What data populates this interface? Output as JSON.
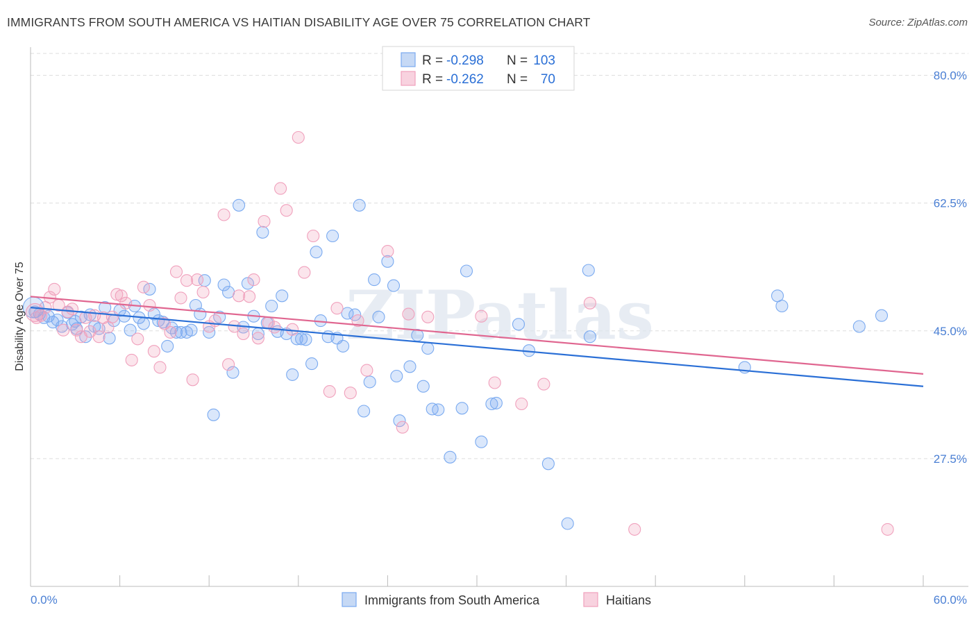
{
  "title": "IMMIGRANTS FROM SOUTH AMERICA VS HAITIAN DISABILITY AGE OVER 75 CORRELATION CHART",
  "source": "Source: ZipAtlas.com",
  "watermark": "ZIPatlas",
  "colors": {
    "blue": "#7aaaf0",
    "blue_line": "#2a6fd6",
    "pink": "#f0a0bc",
    "pink_line": "#e06690",
    "tick_text": "#4a7fd4",
    "grid": "#dddddd"
  },
  "legend": {
    "r_label": "R =",
    "n_label": "N =",
    "rows": [
      {
        "r": "-0.298",
        "n": "103"
      },
      {
        "r": "-0.262",
        "n": "70"
      }
    ]
  },
  "chart_data": {
    "type": "scatter",
    "xlabel": "",
    "ylabel": "Disability Age Over 75",
    "xlim": [
      0,
      60
    ],
    "ylim": [
      10,
      83
    ],
    "x_tick_labels": [
      "0.0%",
      "60.0%"
    ],
    "y_ticks": [
      27.5,
      45.0,
      62.5,
      80.0
    ],
    "y_tick_labels": [
      "27.5%",
      "45.0%",
      "62.5%",
      "80.0%"
    ],
    "grid": "horizontal dashed",
    "legend_position": "top-center",
    "series": [
      {
        "name": "Immigrants from South America",
        "color": "#7aaaf0",
        "trend": [
          [
            0,
            48.2
          ],
          [
            60,
            37.4
          ]
        ],
        "points": [
          [
            0.3,
            47.6
          ],
          [
            0.6,
            47.3
          ],
          [
            0.9,
            46.8
          ],
          [
            1.2,
            47.0
          ],
          [
            1.5,
            46.2
          ],
          [
            1.8,
            46.5
          ],
          [
            2.1,
            45.6
          ],
          [
            2.5,
            47.5
          ],
          [
            2.8,
            45.9
          ],
          [
            3.1,
            45.3
          ],
          [
            3.4,
            46.9
          ],
          [
            3.7,
            44.2
          ],
          [
            4.0,
            47.2
          ],
          [
            4.3,
            45.6
          ],
          [
            4.6,
            45.3
          ],
          [
            5.0,
            48.2
          ],
          [
            5.3,
            44.0
          ],
          [
            5.6,
            46.4
          ],
          [
            6.0,
            47.8
          ],
          [
            6.3,
            47.0
          ],
          [
            6.7,
            45.1
          ],
          [
            7.0,
            48.4
          ],
          [
            7.3,
            46.8
          ],
          [
            7.6,
            46.0
          ],
          [
            8.0,
            50.7
          ],
          [
            8.3,
            47.3
          ],
          [
            8.6,
            46.4
          ],
          [
            8.9,
            46.2
          ],
          [
            9.2,
            42.9
          ],
          [
            9.5,
            45.4
          ],
          [
            9.8,
            44.8
          ],
          [
            10.1,
            44.8
          ],
          [
            10.5,
            44.8
          ],
          [
            10.8,
            45.1
          ],
          [
            11.1,
            48.5
          ],
          [
            11.4,
            47.3
          ],
          [
            11.7,
            51.9
          ],
          [
            12.0,
            44.8
          ],
          [
            12.3,
            33.5
          ],
          [
            12.7,
            46.9
          ],
          [
            13.0,
            51.3
          ],
          [
            13.3,
            50.3
          ],
          [
            13.6,
            39.3
          ],
          [
            14.0,
            62.2
          ],
          [
            14.3,
            45.5
          ],
          [
            14.6,
            51.5
          ],
          [
            15.0,
            47.0
          ],
          [
            15.3,
            44.6
          ],
          [
            15.6,
            58.5
          ],
          [
            15.9,
            46.1
          ],
          [
            16.2,
            48.4
          ],
          [
            16.6,
            44.9
          ],
          [
            16.9,
            49.8
          ],
          [
            17.2,
            44.6
          ],
          [
            17.6,
            39.0
          ],
          [
            17.9,
            43.9
          ],
          [
            18.2,
            43.9
          ],
          [
            18.5,
            43.8
          ],
          [
            18.9,
            40.5
          ],
          [
            19.2,
            55.8
          ],
          [
            19.5,
            46.4
          ],
          [
            20.0,
            44.2
          ],
          [
            20.3,
            58.0
          ],
          [
            20.6,
            44.0
          ],
          [
            21.0,
            42.9
          ],
          [
            21.3,
            47.4
          ],
          [
            21.8,
            47.2
          ],
          [
            22.1,
            62.2
          ],
          [
            22.4,
            34.0
          ],
          [
            22.8,
            38.0
          ],
          [
            23.1,
            52.0
          ],
          [
            23.4,
            46.9
          ],
          [
            24.0,
            54.5
          ],
          [
            24.4,
            51.2
          ],
          [
            24.6,
            38.8
          ],
          [
            24.8,
            32.7
          ],
          [
            25.5,
            40.1
          ],
          [
            26.0,
            44.4
          ],
          [
            26.4,
            37.4
          ],
          [
            26.7,
            42.6
          ],
          [
            27.0,
            34.3
          ],
          [
            27.4,
            34.2
          ],
          [
            28.2,
            27.7
          ],
          [
            29.0,
            34.4
          ],
          [
            29.3,
            53.2
          ],
          [
            30.3,
            29.8
          ],
          [
            31.0,
            35.0
          ],
          [
            31.3,
            35.1
          ],
          [
            32.8,
            45.9
          ],
          [
            33.5,
            42.3
          ],
          [
            34.8,
            26.8
          ],
          [
            36.1,
            18.6
          ],
          [
            37.5,
            53.3
          ],
          [
            37.6,
            44.2
          ],
          [
            48.0,
            40.0
          ],
          [
            50.2,
            49.8
          ],
          [
            50.5,
            48.4
          ],
          [
            55.7,
            45.6
          ],
          [
            57.2,
            47.1
          ],
          [
            3.0,
            46.3
          ]
        ]
      },
      {
        "name": "Haitians",
        "color": "#f0a0bc",
        "trend": [
          [
            0,
            49.7
          ],
          [
            60,
            39.1
          ]
        ],
        "points": [
          [
            0.4,
            46.8
          ],
          [
            0.7,
            47.1
          ],
          [
            1.0,
            48.2
          ],
          [
            1.3,
            49.6
          ],
          [
            1.6,
            50.7
          ],
          [
            1.9,
            48.5
          ],
          [
            2.2,
            45.1
          ],
          [
            2.5,
            47.6
          ],
          [
            2.8,
            48.0
          ],
          [
            3.1,
            45.1
          ],
          [
            3.4,
            44.2
          ],
          [
            3.7,
            46.8
          ],
          [
            4.0,
            44.9
          ],
          [
            4.3,
            47.1
          ],
          [
            4.6,
            44.2
          ],
          [
            4.9,
            46.8
          ],
          [
            5.2,
            45.5
          ],
          [
            5.5,
            46.9
          ],
          [
            5.8,
            50.0
          ],
          [
            6.1,
            49.8
          ],
          [
            6.4,
            48.8
          ],
          [
            6.8,
            41.0
          ],
          [
            7.2,
            43.9
          ],
          [
            7.6,
            51.0
          ],
          [
            8.0,
            48.5
          ],
          [
            8.3,
            42.2
          ],
          [
            8.7,
            40.0
          ],
          [
            9.0,
            46.0
          ],
          [
            9.4,
            44.8
          ],
          [
            9.8,
            53.1
          ],
          [
            10.1,
            49.5
          ],
          [
            10.5,
            51.9
          ],
          [
            10.9,
            38.3
          ],
          [
            11.2,
            52.0
          ],
          [
            11.6,
            50.3
          ],
          [
            12.0,
            45.6
          ],
          [
            12.4,
            46.4
          ],
          [
            13.0,
            60.9
          ],
          [
            13.3,
            40.4
          ],
          [
            13.7,
            45.6
          ],
          [
            14.0,
            49.8
          ],
          [
            14.3,
            44.6
          ],
          [
            14.7,
            49.7
          ],
          [
            15.0,
            52.0
          ],
          [
            15.3,
            44.0
          ],
          [
            15.7,
            60.0
          ],
          [
            16.0,
            46.1
          ],
          [
            16.4,
            45.5
          ],
          [
            16.8,
            64.5
          ],
          [
            17.2,
            61.5
          ],
          [
            17.6,
            45.2
          ],
          [
            18.0,
            71.5
          ],
          [
            18.4,
            53.0
          ],
          [
            19.0,
            58.0
          ],
          [
            20.1,
            36.7
          ],
          [
            20.6,
            48.1
          ],
          [
            21.5,
            36.5
          ],
          [
            22.0,
            46.4
          ],
          [
            22.6,
            39.6
          ],
          [
            24.0,
            55.9
          ],
          [
            25.0,
            31.8
          ],
          [
            25.4,
            47.3
          ],
          [
            26.7,
            46.9
          ],
          [
            30.3,
            47.0
          ],
          [
            31.2,
            37.9
          ],
          [
            33.0,
            35.0
          ],
          [
            34.5,
            37.7
          ],
          [
            37.6,
            48.8
          ],
          [
            40.6,
            17.8
          ],
          [
            57.6,
            17.8
          ]
        ]
      }
    ]
  },
  "bottom_legend": [
    {
      "label": "Immigrants from South America"
    },
    {
      "label": "Haitians"
    }
  ]
}
